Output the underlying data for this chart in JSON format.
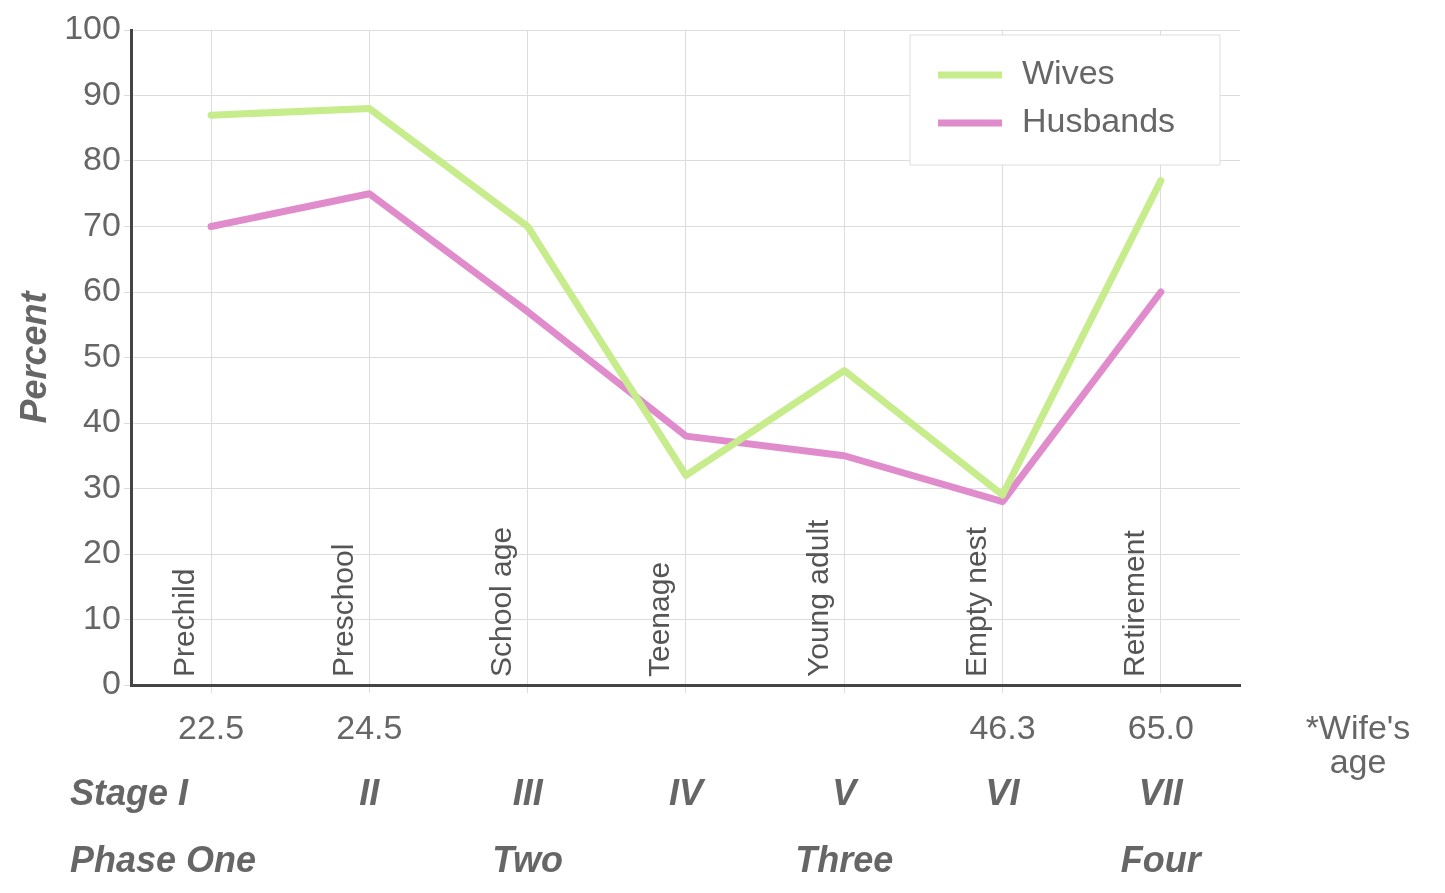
{
  "chart_data": {
    "type": "line",
    "ylabel": "Percent",
    "categories": [
      "Prechild",
      "Preschool",
      "School age",
      "Teenage",
      "Young adult",
      "Empty nest",
      "Retirement"
    ],
    "series": [
      {
        "name": "Wives",
        "color": "#c6ec8c",
        "values": [
          87,
          88,
          70,
          32,
          48,
          29,
          77
        ]
      },
      {
        "name": "Husbands",
        "color": "#e08ccc",
        "values": [
          70,
          75,
          57,
          38,
          35,
          28,
          60
        ]
      }
    ],
    "ylim": [
      0,
      100
    ],
    "yticks": [
      0,
      10,
      20,
      30,
      40,
      50,
      60,
      70,
      80,
      90,
      100
    ],
    "grid": true,
    "legend": "top right",
    "marker": "none",
    "line_style": "solid",
    "annotations": [
      "22.5",
      "24.5",
      "46.3",
      "65.0",
      "Stage I",
      "II",
      "III",
      "IV",
      "V",
      "VI",
      "VII",
      "Phase One",
      "Two",
      "Three",
      "Four",
      "*Wife's age"
    ]
  }
}
